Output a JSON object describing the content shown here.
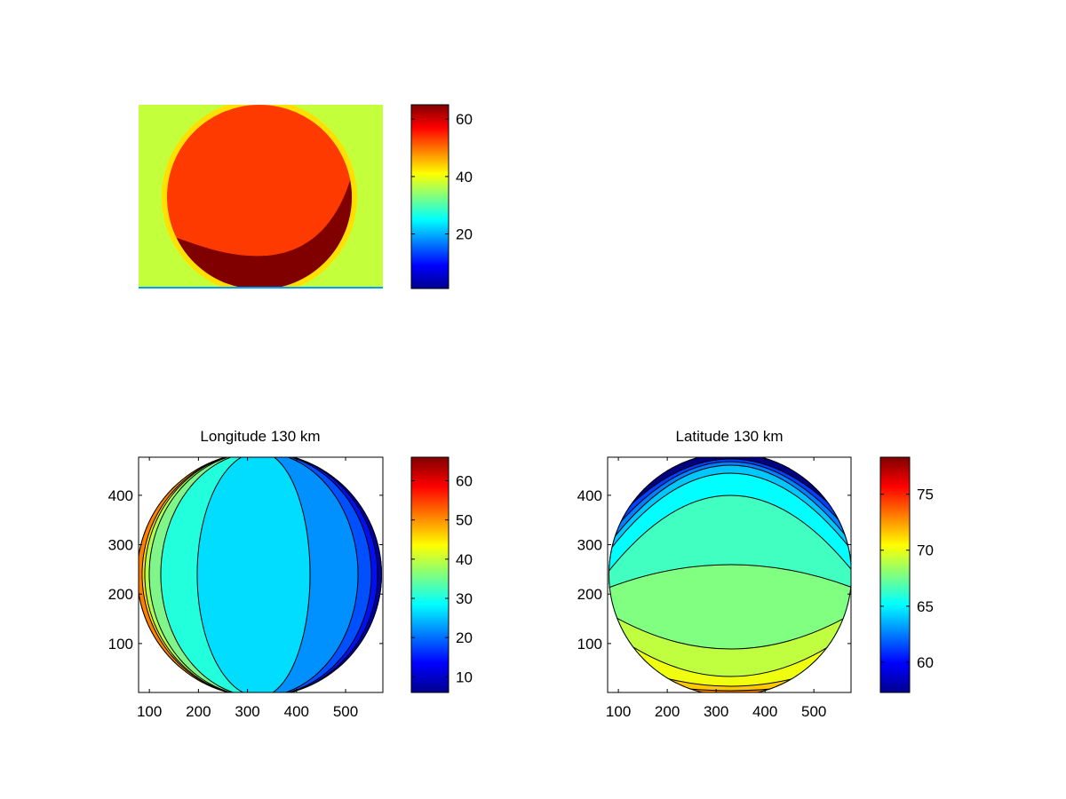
{
  "chart_data": [
    {
      "type": "heatmap",
      "title": "",
      "xticks": [],
      "yticks": [],
      "colormap": "jet",
      "colorbar": {
        "range": [
          1,
          65
        ],
        "ticks": [
          "20",
          "40",
          "60"
        ]
      },
      "colors": {
        "background": "#C4FF3B",
        "halo": "#FFE000",
        "disk": "#FF3A00",
        "dark_region": "#800000",
        "bottom_line": "#00A0FF"
      }
    },
    {
      "type": "heatmap",
      "title": "Longitude 130 km",
      "xlim": [
        78,
        576
      ],
      "ylim": [
        1,
        477
      ],
      "xticks": [
        "100",
        "200",
        "300",
        "400",
        "500"
      ],
      "yticks": [
        "100",
        "200",
        "300",
        "400"
      ],
      "colormap": "jet",
      "colorbar": {
        "range": [
          6,
          66
        ],
        "ticks": [
          "10",
          "20",
          "30",
          "40",
          "50",
          "60"
        ]
      },
      "band_colors_left_to_right": [
        "#FF8000",
        "#FFE000",
        "#B0FF50",
        "#7FF58A",
        "#22FFDD",
        "#00DDFF",
        "#0091FF",
        "#0050FF",
        "#0010F0",
        "#0000A0"
      ]
    },
    {
      "type": "heatmap",
      "title": "Latitude 130 km",
      "xlim": [
        78,
        576
      ],
      "ylim": [
        1,
        477
      ],
      "xticks": [
        "100",
        "200",
        "300",
        "400",
        "500"
      ],
      "yticks": [
        "100",
        "200",
        "300",
        "400"
      ],
      "colormap": "jet",
      "colorbar": {
        "range": [
          57.3,
          78.3
        ],
        "ticks": [
          "60",
          "65",
          "70",
          "75"
        ]
      },
      "band_colors_top_to_bottom": [
        "#000080",
        "#0040FF",
        "#0080FF",
        "#00C8FF",
        "#00FFFF",
        "#40FFC0",
        "#80FF80",
        "#C0FF40",
        "#F0FF10",
        "#FFC800",
        "#FF8000"
      ]
    }
  ]
}
